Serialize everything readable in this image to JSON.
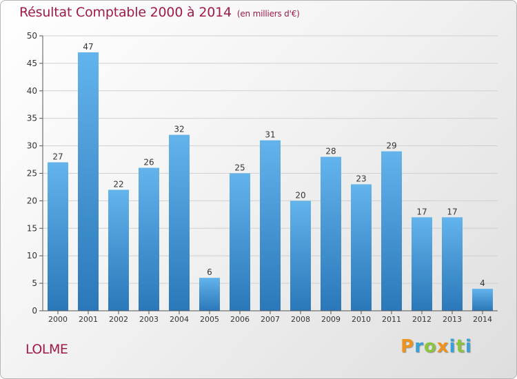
{
  "title": "Résultat Comptable 2000 à 2014",
  "subtitle": "(en milliers d'€)",
  "commune": "LOLME",
  "logo": {
    "text": "Proxiti",
    "letters": [
      {
        "ch": "P",
        "color": "#f0931e"
      },
      {
        "ch": "r",
        "color": "#3aa0d8"
      },
      {
        "ch": "o",
        "color": "#8cc43f"
      },
      {
        "ch": "x",
        "color": "#f0931e"
      },
      {
        "ch": "i",
        "color": "#3aa0d8"
      },
      {
        "ch": "t",
        "color": "#8cc43f"
      },
      {
        "ch": "i",
        "color": "#3aa0d8"
      }
    ]
  },
  "colors": {
    "title": "#a01a45",
    "bar_top": "#63b3ec",
    "bar_bottom": "#2a78b9",
    "grid": "#cfcfcf",
    "axis_text": "#333333"
  },
  "chart_data": {
    "type": "bar",
    "title": "Résultat Comptable 2000 à 2014",
    "unit": "milliers d'€",
    "categories": [
      "2000",
      "2001",
      "2002",
      "2003",
      "2004",
      "2005",
      "2006",
      "2007",
      "2008",
      "2009",
      "2010",
      "2011",
      "2012",
      "2013",
      "2014"
    ],
    "values": [
      27,
      47,
      22,
      26,
      32,
      6,
      25,
      31,
      20,
      28,
      23,
      29,
      17,
      17,
      4
    ],
    "ylim": [
      0,
      50
    ],
    "yticks": [
      0,
      5,
      10,
      15,
      20,
      25,
      30,
      35,
      40,
      45,
      50
    ],
    "grid": true,
    "xlabel": "",
    "ylabel": ""
  }
}
